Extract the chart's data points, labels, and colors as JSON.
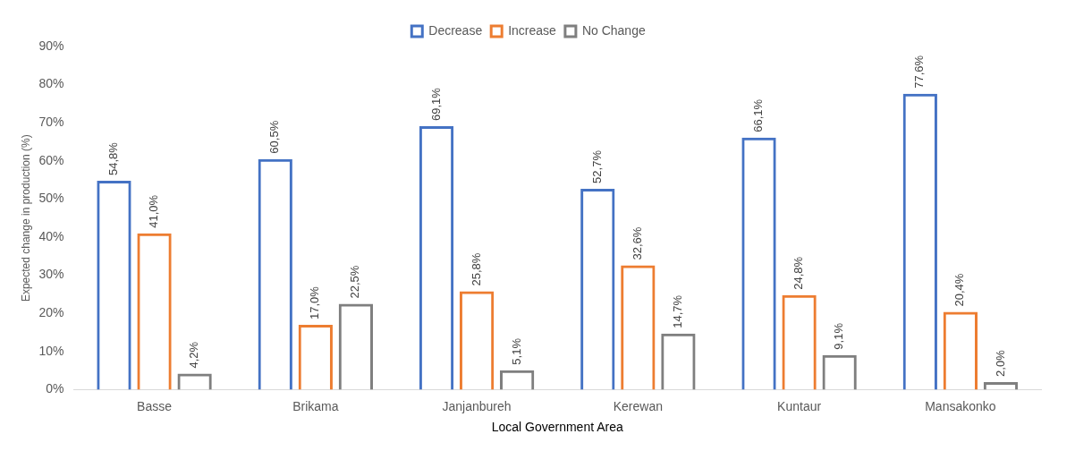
{
  "chart_data": {
    "type": "bar",
    "xlabel": "Local Government Area",
    "ylabel": "Expected change in production (%)",
    "categories": [
      "Basse",
      "Brikama",
      "Janjanbureh",
      "Kerewan",
      "Kuntaur",
      "Mansakonko"
    ],
    "series": [
      {
        "name": "Decrease",
        "color": "#4472c4",
        "values": [
          54.8,
          60.5,
          69.1,
          52.7,
          66.1,
          77.6
        ],
        "value_labels": [
          "54,8%",
          "60,5%",
          "69,1%",
          "52,7%",
          "66,1%",
          "77,6%"
        ]
      },
      {
        "name": "Increase",
        "color": "#ed7d31",
        "values": [
          41.0,
          17.0,
          25.8,
          32.6,
          24.8,
          20.4
        ],
        "value_labels": [
          "41,0%",
          "17,0%",
          "25,8%",
          "32,6%",
          "24,8%",
          "20,4%"
        ]
      },
      {
        "name": "No Change",
        "color": "#7f7f7f",
        "values": [
          4.2,
          22.5,
          5.1,
          14.7,
          9.1,
          2.0
        ],
        "value_labels": [
          "4,2%",
          "22,5%",
          "5,1%",
          "14,7%",
          "9,1%",
          "2,0%"
        ]
      }
    ],
    "ylim": [
      0,
      90
    ],
    "yticks": [
      {
        "value": 0,
        "label": "0%"
      },
      {
        "value": 10,
        "label": "10%"
      },
      {
        "value": 20,
        "label": "20%"
      },
      {
        "value": 30,
        "label": "30%"
      },
      {
        "value": 40,
        "label": "40%"
      },
      {
        "value": 50,
        "label": "50%"
      },
      {
        "value": 60,
        "label": "60%"
      },
      {
        "value": 70,
        "label": "70%"
      },
      {
        "value": 80,
        "label": "80%"
      },
      {
        "value": 90,
        "label": "90%"
      }
    ],
    "grid": false,
    "legend": "top"
  }
}
